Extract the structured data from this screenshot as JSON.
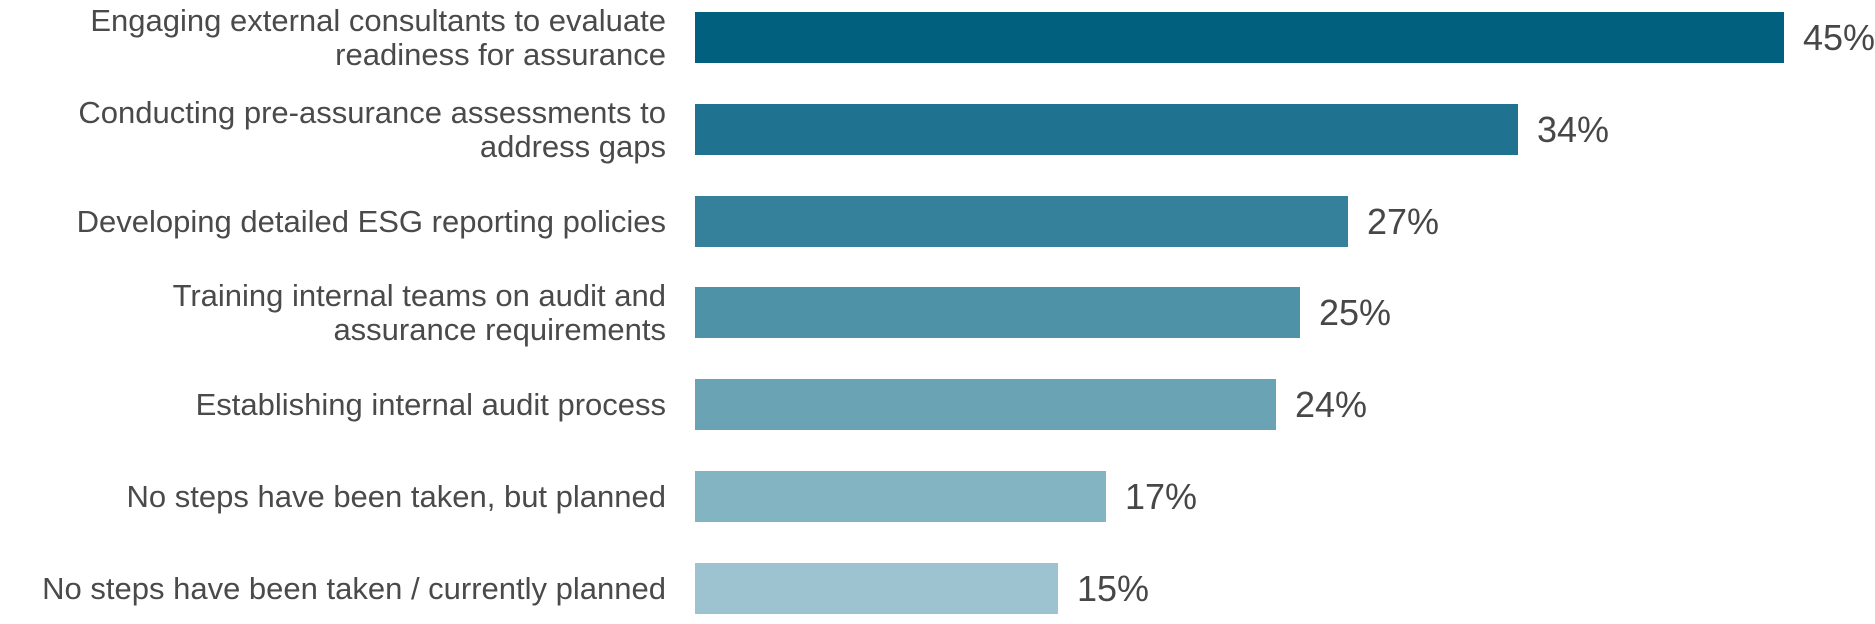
{
  "chart_data": {
    "type": "bar",
    "orientation": "horizontal",
    "title": "",
    "xlabel": "",
    "ylabel": "",
    "xlim": [
      0,
      48
    ],
    "grid": "off",
    "legend": "none",
    "background_color": "#ffffff",
    "label_color": "#4a4a4a",
    "value_label_color": "#474747",
    "categories": [
      "Engaging external consultants to evaluate readiness for assurance",
      "Conducting pre-assurance assessments to address gaps",
      "Developing detailed ESG reporting policies",
      "Training internal teams on audit and assurance requirements",
      "Establishing internal audit process",
      "No steps have been taken, but planned",
      "No steps have been taken / currently planned"
    ],
    "category_lines": [
      [
        "Engaging external consultants to evaluate",
        "readiness for assurance"
      ],
      [
        "Conducting pre-assurance assessments to",
        "address gaps"
      ],
      [
        "Developing detailed ESG reporting policies"
      ],
      [
        "Training internal teams on audit and",
        "assurance requirements"
      ],
      [
        "Establishing internal audit process"
      ],
      [
        "No steps have been taken, but planned"
      ],
      [
        "No steps have been taken / currently planned"
      ]
    ],
    "values": [
      45,
      34,
      27,
      25,
      24,
      17,
      15
    ],
    "value_labels": [
      "45%",
      "34%",
      "27%",
      "25%",
      "24%",
      "17%",
      "15%"
    ],
    "bar_colors": [
      "#00607e",
      "#1f7391",
      "#35809a",
      "#4e92a7",
      "#6aa3b4",
      "#83b4c2",
      "#9dc2d0"
    ]
  }
}
